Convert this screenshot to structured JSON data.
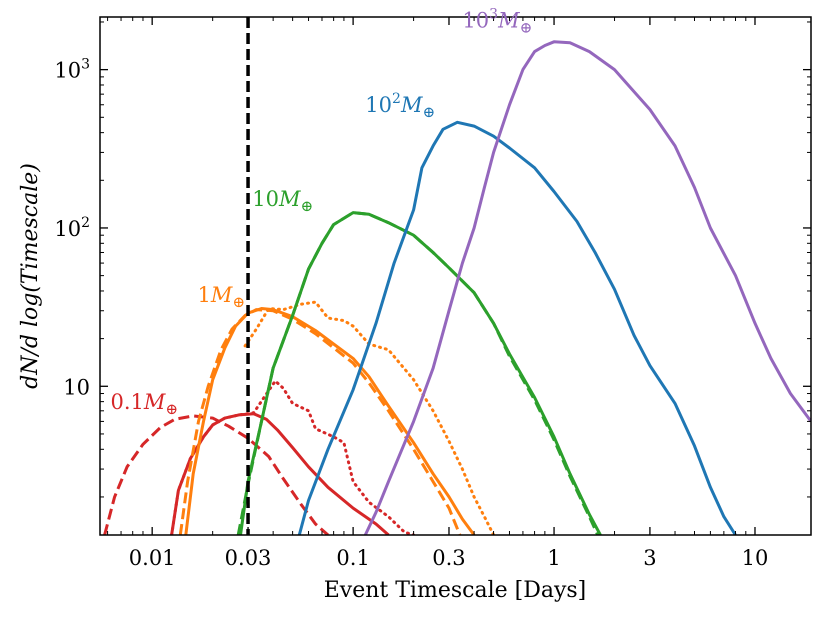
{
  "chart_data": {
    "type": "line",
    "xlabel": "Event Timescale [Days]",
    "ylabel": "dN/d log(Timescale)",
    "xscale": "log",
    "yscale": "log",
    "xlim": [
      0.0055,
      19
    ],
    "ylim": [
      1.15,
      2150
    ],
    "x_ticks": [
      {
        "value": 0.01,
        "label": "0.01"
      },
      {
        "value": 0.03,
        "label": "0.03"
      },
      {
        "value": 0.1,
        "label": "0.1"
      },
      {
        "value": 0.3,
        "label": "0.3"
      },
      {
        "value": 1,
        "label": "1"
      },
      {
        "value": 3,
        "label": "3"
      },
      {
        "value": 10,
        "label": "10"
      }
    ],
    "y_ticks": [
      {
        "value": 10,
        "label": "10"
      },
      {
        "value": 100,
        "label": "10",
        "exp": "2"
      },
      {
        "value": 1000,
        "label": "10",
        "exp": "3"
      }
    ],
    "vline": {
      "x": 0.03,
      "style": "dashed",
      "color": "#000000"
    },
    "series": [
      {
        "name": "0.1 M_earth",
        "label_coef": "0.1",
        "label_exp": "",
        "label_x": 0.0062,
        "label_y": 7.2,
        "color": "#d62728",
        "lines": [
          {
            "style": "solid",
            "points": [
              [
                0.0125,
                1.15
              ],
              [
                0.0135,
                2.2
              ],
              [
                0.0155,
                3.5
              ],
              [
                0.018,
                4.8
              ],
              [
                0.02,
                5.7
              ],
              [
                0.023,
                6.3
              ],
              [
                0.027,
                6.6
              ],
              [
                0.032,
                6.7
              ],
              [
                0.037,
                6.2
              ],
              [
                0.042,
                5.3
              ],
              [
                0.05,
                4.1
              ],
              [
                0.06,
                3.1
              ],
              [
                0.075,
                2.3
              ],
              [
                0.1,
                1.7
              ],
              [
                0.13,
                1.35
              ],
              [
                0.15,
                1.15
              ]
            ]
          },
          {
            "style": "dashed",
            "points": [
              [
                0.0058,
                1.15
              ],
              [
                0.0065,
                2.0
              ],
              [
                0.0075,
                3.1
              ],
              [
                0.009,
                4.3
              ],
              [
                0.011,
                5.5
              ],
              [
                0.013,
                6.2
              ],
              [
                0.016,
                6.5
              ],
              [
                0.02,
                6.3
              ],
              [
                0.024,
                5.6
              ],
              [
                0.03,
                4.7
              ],
              [
                0.038,
                3.6
              ],
              [
                0.045,
                2.6
              ],
              [
                0.055,
                1.8
              ],
              [
                0.065,
                1.35
              ],
              [
                0.075,
                1.15
              ]
            ]
          },
          {
            "style": "dotted",
            "points": [
              [
                0.0125,
                1.15
              ],
              [
                0.0135,
                2.2
              ],
              [
                0.0155,
                3.5
              ],
              [
                0.018,
                4.8
              ],
              [
                0.02,
                5.7
              ],
              [
                0.023,
                6.3
              ],
              [
                0.027,
                6.6
              ],
              [
                0.032,
                6.8
              ],
              [
                0.036,
                8.5
              ],
              [
                0.041,
                10.8
              ],
              [
                0.045,
                9.7
              ],
              [
                0.05,
                7.8
              ],
              [
                0.06,
                7.0
              ],
              [
                0.065,
                5.4
              ],
              [
                0.08,
                4.8
              ],
              [
                0.09,
                4.4
              ],
              [
                0.1,
                2.5
              ],
              [
                0.12,
                1.85
              ],
              [
                0.15,
                1.5
              ],
              [
                0.18,
                1.2
              ],
              [
                0.2,
                1.15
              ]
            ]
          }
        ]
      },
      {
        "name": "1 M_earth",
        "label_coef": "1",
        "label_exp": "",
        "label_x": 0.0168,
        "label_y": 34,
        "color": "#ff7f0e",
        "lines": [
          {
            "style": "solid",
            "points": [
              [
                0.0147,
                1.15
              ],
              [
                0.016,
                2.8
              ],
              [
                0.018,
                6
              ],
              [
                0.02,
                11
              ],
              [
                0.023,
                17.5
              ],
              [
                0.026,
                24
              ],
              [
                0.03,
                29
              ],
              [
                0.035,
                31
              ],
              [
                0.04,
                30.5
              ],
              [
                0.05,
                27.5
              ],
              [
                0.065,
                22.5
              ],
              [
                0.08,
                18.5
              ],
              [
                0.1,
                15
              ],
              [
                0.12,
                11.5
              ],
              [
                0.15,
                7.5
              ],
              [
                0.2,
                4.4
              ],
              [
                0.25,
                2.8
              ],
              [
                0.3,
                2.0
              ],
              [
                0.35,
                1.45
              ],
              [
                0.4,
                1.15
              ]
            ]
          },
          {
            "style": "dashed",
            "points": [
              [
                0.0138,
                1.15
              ],
              [
                0.015,
                2.5
              ],
              [
                0.017,
                6
              ],
              [
                0.019,
                10
              ],
              [
                0.022,
                17
              ],
              [
                0.025,
                23
              ],
              [
                0.029,
                28
              ],
              [
                0.033,
                30.5
              ],
              [
                0.04,
                30
              ],
              [
                0.05,
                26.5
              ],
              [
                0.065,
                21.5
              ],
              [
                0.08,
                17.5
              ],
              [
                0.1,
                14
              ],
              [
                0.12,
                10.5
              ],
              [
                0.15,
                7
              ],
              [
                0.2,
                4.0
              ],
              [
                0.25,
                2.5
              ],
              [
                0.3,
                1.7
              ],
              [
                0.34,
                1.15
              ]
            ]
          },
          {
            "style": "dotted",
            "points": [
              [
                0.029,
                18
              ],
              [
                0.033,
                23
              ],
              [
                0.038,
                31
              ],
              [
                0.045,
                30.5
              ],
              [
                0.055,
                33
              ],
              [
                0.065,
                34
              ],
              [
                0.075,
                27
              ],
              [
                0.09,
                26
              ],
              [
                0.1,
                24
              ],
              [
                0.12,
                18.5
              ],
              [
                0.15,
                17
              ],
              [
                0.2,
                11
              ],
              [
                0.25,
                7
              ],
              [
                0.3,
                4.5
              ],
              [
                0.35,
                3.0
              ],
              [
                0.4,
                2.0
              ],
              [
                0.45,
                1.5
              ],
              [
                0.5,
                1.15
              ]
            ]
          }
        ]
      },
      {
        "name": "10 M_earth",
        "label_coef": "10",
        "label_exp": "",
        "label_x": 0.0315,
        "label_y": 138,
        "color": "#2ca02c",
        "lines": [
          {
            "style": "solid",
            "points": [
              [
                0.0275,
                1.15
              ],
              [
                0.03,
                2.5
              ],
              [
                0.035,
                6
              ],
              [
                0.04,
                13
              ],
              [
                0.05,
                28
              ],
              [
                0.06,
                55
              ],
              [
                0.07,
                80
              ],
              [
                0.08,
                105
              ],
              [
                0.1,
                125
              ],
              [
                0.12,
                122
              ],
              [
                0.15,
                108
              ],
              [
                0.2,
                90
              ],
              [
                0.25,
                70
              ],
              [
                0.3,
                56
              ],
              [
                0.4,
                39
              ],
              [
                0.5,
                25
              ],
              [
                0.6,
                16
              ],
              [
                0.8,
                8.5
              ],
              [
                1.0,
                4.8
              ],
              [
                1.2,
                2.8
              ],
              [
                1.5,
                1.55
              ],
              [
                1.7,
                1.15
              ]
            ]
          },
          {
            "style": "dashed",
            "points": [
              [
                0.0268,
                1.15
              ],
              [
                0.03,
                2.4
              ],
              [
                0.035,
                6
              ],
              [
                0.04,
                13
              ],
              [
                0.05,
                28
              ],
              [
                0.06,
                55
              ],
              [
                0.07,
                80
              ],
              [
                0.08,
                105
              ],
              [
                0.1,
                125
              ],
              [
                0.12,
                122
              ],
              [
                0.15,
                108
              ],
              [
                0.2,
                90
              ],
              [
                0.25,
                70
              ],
              [
                0.3,
                56
              ],
              [
                0.4,
                39
              ],
              [
                0.5,
                25
              ],
              [
                0.6,
                15.5
              ],
              [
                0.8,
                8.2
              ],
              [
                1.0,
                4.6
              ],
              [
                1.2,
                2.7
              ],
              [
                1.5,
                1.5
              ],
              [
                1.65,
                1.15
              ]
            ]
          }
        ]
      },
      {
        "name": "100 M_earth",
        "label_coef": "10",
        "label_exp": "2",
        "label_x": 0.115,
        "label_y": 540,
        "color": "#1f77b4",
        "lines": [
          {
            "style": "solid",
            "points": [
              [
                0.054,
                1.15
              ],
              [
                0.06,
                1.9
              ],
              [
                0.075,
                4
              ],
              [
                0.1,
                9.5
              ],
              [
                0.13,
                25
              ],
              [
                0.16,
                60
              ],
              [
                0.2,
                130
              ],
              [
                0.22,
                240
              ],
              [
                0.25,
                330
              ],
              [
                0.28,
                420
              ],
              [
                0.33,
                465
              ],
              [
                0.4,
                440
              ],
              [
                0.5,
                380
              ],
              [
                0.6,
                320
              ],
              [
                0.8,
                240
              ],
              [
                1.0,
                170
              ],
              [
                1.3,
                110
              ],
              [
                1.6,
                70
              ],
              [
                2.0,
                41
              ],
              [
                2.5,
                21
              ],
              [
                3.0,
                13.5
              ],
              [
                4.0,
                7.8
              ],
              [
                5.0,
                4.2
              ],
              [
                6.0,
                2.3
              ],
              [
                7.0,
                1.5
              ],
              [
                8.0,
                1.15
              ]
            ]
          }
        ]
      },
      {
        "name": "1000 M_earth",
        "label_coef": "10",
        "label_exp": "3",
        "label_x": 0.35,
        "label_y": 1850,
        "color": "#9467bd",
        "lines": [
          {
            "style": "solid",
            "points": [
              [
                0.115,
                1.15
              ],
              [
                0.13,
                1.6
              ],
              [
                0.15,
                2.5
              ],
              [
                0.2,
                6
              ],
              [
                0.25,
                13
              ],
              [
                0.3,
                30
              ],
              [
                0.35,
                60
              ],
              [
                0.4,
                100
              ],
              [
                0.45,
                180
              ],
              [
                0.5,
                300
              ],
              [
                0.6,
                600
              ],
              [
                0.7,
                1000
              ],
              [
                0.8,
                1300
              ],
              [
                0.9,
                1420
              ],
              [
                1.0,
                1500
              ],
              [
                1.2,
                1480
              ],
              [
                1.5,
                1300
              ],
              [
                2.0,
                1000
              ],
              [
                3.0,
                560
              ],
              [
                4.0,
                330
              ],
              [
                5.0,
                180
              ],
              [
                6.0,
                100
              ],
              [
                8.0,
                50
              ],
              [
                10,
                25
              ],
              [
                12,
                15
              ],
              [
                15,
                9
              ],
              [
                19,
                6
              ]
            ]
          }
        ]
      }
    ]
  }
}
